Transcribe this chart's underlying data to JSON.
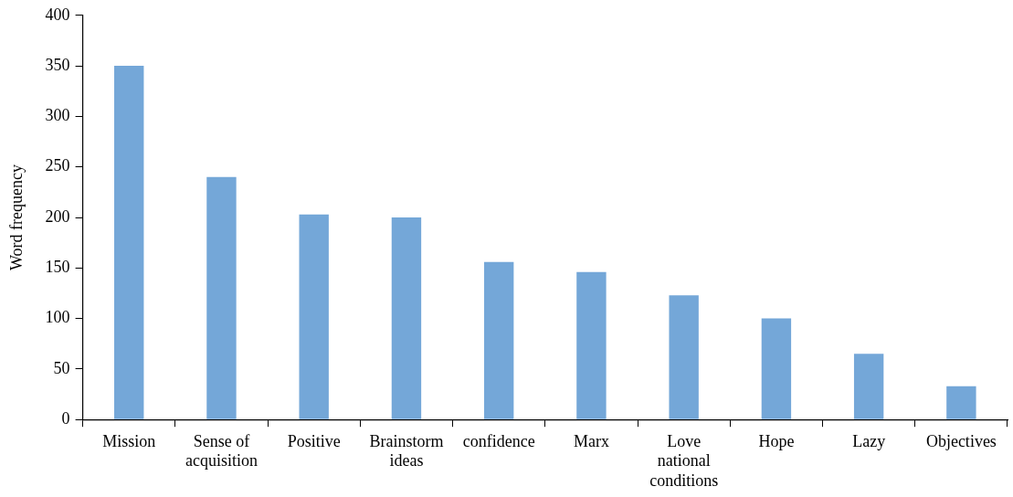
{
  "chart_data": {
    "type": "bar",
    "ylabel": "Word frequency",
    "categories": [
      "Mission",
      "Sense of acquisition",
      "Positive",
      "Brainstorm ideas",
      "confidence",
      "Marx",
      "Love national conditions",
      "Hope",
      "Lazy",
      "Objectives"
    ],
    "values": [
      350,
      240,
      203,
      200,
      156,
      146,
      123,
      100,
      65,
      33
    ],
    "color": "#74a7d8",
    "ylim": [
      0,
      400
    ],
    "yticks": [
      0,
      50,
      100,
      150,
      200,
      250,
      300,
      350,
      400
    ],
    "grid": false,
    "legend": false
  }
}
